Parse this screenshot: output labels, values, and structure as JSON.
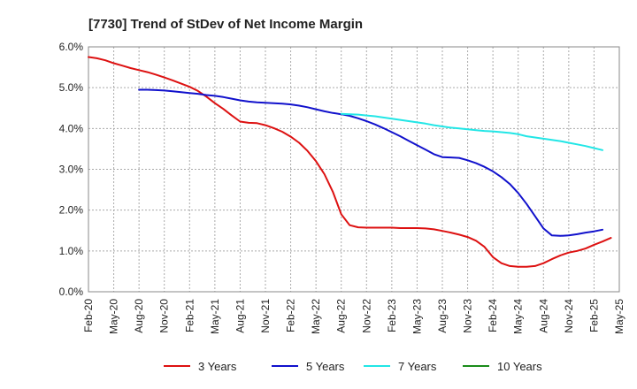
{
  "chart_data": {
    "type": "line",
    "title": "[7730]  Trend of StDev of Net Income Margin",
    "xlabel": "",
    "ylabel": "",
    "ylim": [
      0,
      6
    ],
    "yticks": [
      "0.0%",
      "1.0%",
      "2.0%",
      "3.0%",
      "4.0%",
      "5.0%",
      "6.0%"
    ],
    "xticks": [
      "Feb-20",
      "May-20",
      "Aug-20",
      "Nov-20",
      "Feb-21",
      "May-21",
      "Aug-21",
      "Nov-21",
      "Feb-22",
      "May-22",
      "Aug-22",
      "Nov-22",
      "Feb-23",
      "May-23",
      "Aug-23",
      "Nov-23",
      "Feb-24",
      "May-24",
      "Aug-24",
      "Nov-24",
      "Feb-25",
      "May-25"
    ],
    "grid": true,
    "legend_position": "bottom",
    "series": [
      {
        "name": "3 Years",
        "color": "#dd1111",
        "points": [
          [
            "Feb-20",
            5.75
          ],
          [
            "Mar-20",
            5.72
          ],
          [
            "Apr-20",
            5.67
          ],
          [
            "May-20",
            5.6
          ],
          [
            "Jun-20",
            5.54
          ],
          [
            "Jul-20",
            5.48
          ],
          [
            "Aug-20",
            5.43
          ],
          [
            "Sep-20",
            5.38
          ],
          [
            "Oct-20",
            5.32
          ],
          [
            "Nov-20",
            5.25
          ],
          [
            "Dec-20",
            5.18
          ],
          [
            "Jan-21",
            5.1
          ],
          [
            "Feb-21",
            5.02
          ],
          [
            "Mar-21",
            4.92
          ],
          [
            "Apr-21",
            4.78
          ],
          [
            "May-21",
            4.62
          ],
          [
            "Jun-21",
            4.48
          ],
          [
            "Jul-21",
            4.32
          ],
          [
            "Aug-21",
            4.17
          ],
          [
            "Sep-21",
            4.14
          ],
          [
            "Oct-21",
            4.13
          ],
          [
            "Nov-21",
            4.08
          ],
          [
            "Dec-21",
            4.01
          ],
          [
            "Jan-22",
            3.92
          ],
          [
            "Feb-22",
            3.8
          ],
          [
            "Mar-22",
            3.65
          ],
          [
            "Apr-22",
            3.45
          ],
          [
            "May-22",
            3.2
          ],
          [
            "Jun-22",
            2.88
          ],
          [
            "Jul-22",
            2.45
          ],
          [
            "Aug-22",
            1.9
          ],
          [
            "Sep-22",
            1.63
          ],
          [
            "Oct-22",
            1.58
          ],
          [
            "Nov-22",
            1.57
          ],
          [
            "Dec-22",
            1.57
          ],
          [
            "Jan-23",
            1.57
          ],
          [
            "Feb-23",
            1.57
          ],
          [
            "Mar-23",
            1.56
          ],
          [
            "Apr-23",
            1.56
          ],
          [
            "May-23",
            1.56
          ],
          [
            "Jun-23",
            1.55
          ],
          [
            "Jul-23",
            1.53
          ],
          [
            "Aug-23",
            1.49
          ],
          [
            "Sep-23",
            1.45
          ],
          [
            "Oct-23",
            1.4
          ],
          [
            "Nov-23",
            1.34
          ],
          [
            "Dec-23",
            1.25
          ],
          [
            "Jan-24",
            1.1
          ],
          [
            "Feb-24",
            0.85
          ],
          [
            "Mar-24",
            0.7
          ],
          [
            "Apr-24",
            0.63
          ],
          [
            "May-24",
            0.61
          ],
          [
            "Jun-24",
            0.61
          ],
          [
            "Jul-24",
            0.63
          ],
          [
            "Aug-24",
            0.7
          ],
          [
            "Sep-24",
            0.8
          ],
          [
            "Oct-24",
            0.89
          ],
          [
            "Nov-24",
            0.96
          ],
          [
            "Dec-24",
            1.0
          ],
          [
            "Jan-25",
            1.06
          ],
          [
            "Feb-25",
            1.15
          ],
          [
            "Mar-25",
            1.23
          ],
          [
            "Apr-25",
            1.32
          ]
        ]
      },
      {
        "name": "5 Years",
        "color": "#1111cc",
        "points": [
          [
            "Aug-20",
            4.95
          ],
          [
            "Sep-20",
            4.95
          ],
          [
            "Oct-20",
            4.94
          ],
          [
            "Nov-20",
            4.93
          ],
          [
            "Dec-20",
            4.91
          ],
          [
            "Jan-21",
            4.89
          ],
          [
            "Feb-21",
            4.87
          ],
          [
            "Mar-21",
            4.85
          ],
          [
            "Apr-21",
            4.82
          ],
          [
            "May-21",
            4.8
          ],
          [
            "Jun-21",
            4.77
          ],
          [
            "Jul-21",
            4.73
          ],
          [
            "Aug-21",
            4.69
          ],
          [
            "Sep-21",
            4.66
          ],
          [
            "Oct-21",
            4.64
          ],
          [
            "Nov-21",
            4.63
          ],
          [
            "Dec-21",
            4.62
          ],
          [
            "Jan-22",
            4.61
          ],
          [
            "Feb-22",
            4.59
          ],
          [
            "Mar-22",
            4.56
          ],
          [
            "Apr-22",
            4.52
          ],
          [
            "May-22",
            4.47
          ],
          [
            "Jun-22",
            4.42
          ],
          [
            "Jul-22",
            4.38
          ],
          [
            "Aug-22",
            4.35
          ],
          [
            "Sep-22",
            4.31
          ],
          [
            "Oct-22",
            4.25
          ],
          [
            "Nov-22",
            4.18
          ],
          [
            "Dec-22",
            4.1
          ],
          [
            "Jan-23",
            4.01
          ],
          [
            "Feb-23",
            3.91
          ],
          [
            "Mar-23",
            3.81
          ],
          [
            "Apr-23",
            3.7
          ],
          [
            "May-23",
            3.59
          ],
          [
            "Jun-23",
            3.48
          ],
          [
            "Jul-23",
            3.37
          ],
          [
            "Aug-23",
            3.3
          ],
          [
            "Sep-23",
            3.29
          ],
          [
            "Oct-23",
            3.28
          ],
          [
            "Nov-23",
            3.22
          ],
          [
            "Dec-23",
            3.15
          ],
          [
            "Jan-24",
            3.06
          ],
          [
            "Feb-24",
            2.95
          ],
          [
            "Mar-24",
            2.81
          ],
          [
            "Apr-24",
            2.64
          ],
          [
            "May-24",
            2.42
          ],
          [
            "Jun-24",
            2.15
          ],
          [
            "Jul-24",
            1.85
          ],
          [
            "Aug-24",
            1.55
          ],
          [
            "Sep-24",
            1.38
          ],
          [
            "Oct-24",
            1.37
          ],
          [
            "Nov-24",
            1.38
          ],
          [
            "Dec-24",
            1.41
          ],
          [
            "Jan-25",
            1.45
          ],
          [
            "Feb-25",
            1.48
          ],
          [
            "Mar-25",
            1.52
          ]
        ]
      },
      {
        "name": "7 Years",
        "color": "#22e6e6",
        "points": [
          [
            "Aug-22",
            4.36
          ],
          [
            "Sep-22",
            4.35
          ],
          [
            "Oct-22",
            4.34
          ],
          [
            "Nov-22",
            4.32
          ],
          [
            "Dec-22",
            4.3
          ],
          [
            "Jan-23",
            4.27
          ],
          [
            "Feb-23",
            4.24
          ],
          [
            "Mar-23",
            4.21
          ],
          [
            "Apr-23",
            4.18
          ],
          [
            "May-23",
            4.15
          ],
          [
            "Jun-23",
            4.12
          ],
          [
            "Jul-23",
            4.08
          ],
          [
            "Aug-23",
            4.05
          ],
          [
            "Sep-23",
            4.02
          ],
          [
            "Oct-23",
            4.0
          ],
          [
            "Nov-23",
            3.98
          ],
          [
            "Dec-23",
            3.96
          ],
          [
            "Jan-24",
            3.94
          ],
          [
            "Feb-24",
            3.93
          ],
          [
            "Mar-24",
            3.91
          ],
          [
            "Apr-24",
            3.89
          ],
          [
            "May-24",
            3.86
          ],
          [
            "Jun-24",
            3.81
          ],
          [
            "Jul-24",
            3.78
          ],
          [
            "Aug-24",
            3.75
          ],
          [
            "Sep-24",
            3.72
          ],
          [
            "Oct-24",
            3.69
          ],
          [
            "Nov-24",
            3.65
          ],
          [
            "Dec-24",
            3.61
          ],
          [
            "Jan-25",
            3.57
          ],
          [
            "Feb-25",
            3.52
          ],
          [
            "Mar-25",
            3.47
          ]
        ]
      },
      {
        "name": "10 Years",
        "color": "#1a8c1a",
        "points": []
      }
    ]
  }
}
